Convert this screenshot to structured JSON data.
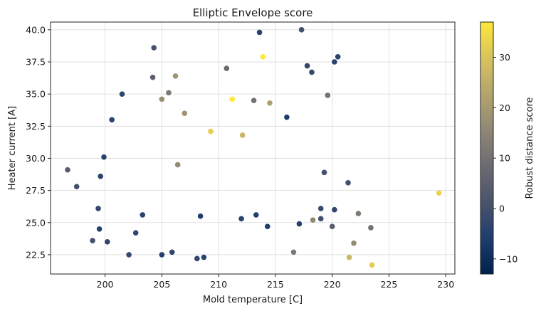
{
  "chart_data": {
    "type": "scatter",
    "title": "Elliptic Envelope score",
    "xlabel": "Mold temperature [C]",
    "ylabel": "Heater current [A]",
    "colorbar_label": "Robust distance score",
    "xlim": [
      195.2,
      230.8
    ],
    "ylim": [
      21.0,
      40.6
    ],
    "x_ticks": [
      200,
      205,
      210,
      215,
      220,
      225,
      230
    ],
    "y_ticks": [
      22.5,
      25.0,
      27.5,
      30.0,
      32.5,
      35.0,
      37.5,
      40.0
    ],
    "colorbar_range": [
      -13,
      37
    ],
    "colorbar_ticks": [
      -10,
      0,
      10,
      20,
      30
    ],
    "colormap": "cividis",
    "colormap_stops": [
      "#00204c",
      "#1f3d6e",
      "#4b536c",
      "#6b6b70",
      "#8f8775",
      "#b3a46c",
      "#d8c35e",
      "#fee838"
    ],
    "grid": true,
    "series": [
      {
        "points": [
          {
            "x": 196.7,
            "y": 29.1,
            "score": 4
          },
          {
            "x": 197.5,
            "y": 27.8,
            "score": 0
          },
          {
            "x": 198.9,
            "y": 23.6,
            "score": 0
          },
          {
            "x": 199.4,
            "y": 26.1,
            "score": -3
          },
          {
            "x": 199.5,
            "y": 24.5,
            "score": -4
          },
          {
            "x": 199.6,
            "y": 28.6,
            "score": -4
          },
          {
            "x": 199.9,
            "y": 30.1,
            "score": -4
          },
          {
            "x": 200.2,
            "y": 23.5,
            "score": -3
          },
          {
            "x": 200.6,
            "y": 33.0,
            "score": -4
          },
          {
            "x": 202.1,
            "y": 22.5,
            "score": -2
          },
          {
            "x": 201.5,
            "y": 35.0,
            "score": -3
          },
          {
            "x": 204.3,
            "y": 38.6,
            "score": 0
          },
          {
            "x": 204.2,
            "y": 36.3,
            "score": 5
          },
          {
            "x": 206.2,
            "y": 36.4,
            "score": 19
          },
          {
            "x": 205.9,
            "y": 22.7,
            "score": -3
          },
          {
            "x": 205.0,
            "y": 22.5,
            "score": -5
          },
          {
            "x": 208.1,
            "y": 22.2,
            "score": -3
          },
          {
            "x": 208.7,
            "y": 22.3,
            "score": -4
          },
          {
            "x": 205.0,
            "y": 34.6,
            "score": 17
          },
          {
            "x": 205.6,
            "y": 35.1,
            "score": 12
          },
          {
            "x": 207.0,
            "y": 33.5,
            "score": 19
          },
          {
            "x": 209.3,
            "y": 32.1,
            "score": 32
          },
          {
            "x": 211.2,
            "y": 34.6,
            "score": 37
          },
          {
            "x": 213.9,
            "y": 37.9,
            "score": 37
          },
          {
            "x": 213.1,
            "y": 34.5,
            "score": 10
          },
          {
            "x": 214.5,
            "y": 34.3,
            "score": 22
          },
          {
            "x": 212.1,
            "y": 31.8,
            "score": 27
          },
          {
            "x": 206.4,
            "y": 29.5,
            "score": 16
          },
          {
            "x": 210.7,
            "y": 37.0,
            "score": 8
          },
          {
            "x": 213.6,
            "y": 39.8,
            "score": -4
          },
          {
            "x": 217.3,
            "y": 40.0,
            "score": 0
          },
          {
            "x": 220.2,
            "y": 37.5,
            "score": -4
          },
          {
            "x": 220.5,
            "y": 37.9,
            "score": -4
          },
          {
            "x": 217.8,
            "y": 37.2,
            "score": -3
          },
          {
            "x": 219.6,
            "y": 34.9,
            "score": 10
          },
          {
            "x": 218.2,
            "y": 36.7,
            "score": -2
          },
          {
            "x": 219.3,
            "y": 28.9,
            "score": 0
          },
          {
            "x": 221.4,
            "y": 28.1,
            "score": 0
          },
          {
            "x": 222.3,
            "y": 25.7,
            "score": 12
          },
          {
            "x": 221.9,
            "y": 23.4,
            "score": 16
          },
          {
            "x": 221.5,
            "y": 22.3,
            "score": 27
          },
          {
            "x": 223.5,
            "y": 21.7,
            "score": 32
          },
          {
            "x": 223.4,
            "y": 24.6,
            "score": 10
          },
          {
            "x": 229.4,
            "y": 27.3,
            "score": 33
          },
          {
            "x": 220.2,
            "y": 26.0,
            "score": -3
          },
          {
            "x": 219.0,
            "y": 26.1,
            "score": -2
          },
          {
            "x": 219.0,
            "y": 25.3,
            "score": 0
          },
          {
            "x": 220.0,
            "y": 24.7,
            "score": 4
          },
          {
            "x": 218.3,
            "y": 25.2,
            "score": 16
          },
          {
            "x": 216.6,
            "y": 22.7,
            "score": 12
          },
          {
            "x": 214.3,
            "y": 24.7,
            "score": -6
          },
          {
            "x": 213.3,
            "y": 25.6,
            "score": -5
          },
          {
            "x": 212.0,
            "y": 25.3,
            "score": -4
          },
          {
            "x": 217.1,
            "y": 24.9,
            "score": -5
          },
          {
            "x": 202.7,
            "y": 24.2,
            "score": -3
          },
          {
            "x": 203.3,
            "y": 25.6,
            "score": -4
          },
          {
            "x": 208.4,
            "y": 25.5,
            "score": -6
          },
          {
            "x": 216.0,
            "y": 33.2,
            "score": -6
          }
        ]
      }
    ]
  }
}
